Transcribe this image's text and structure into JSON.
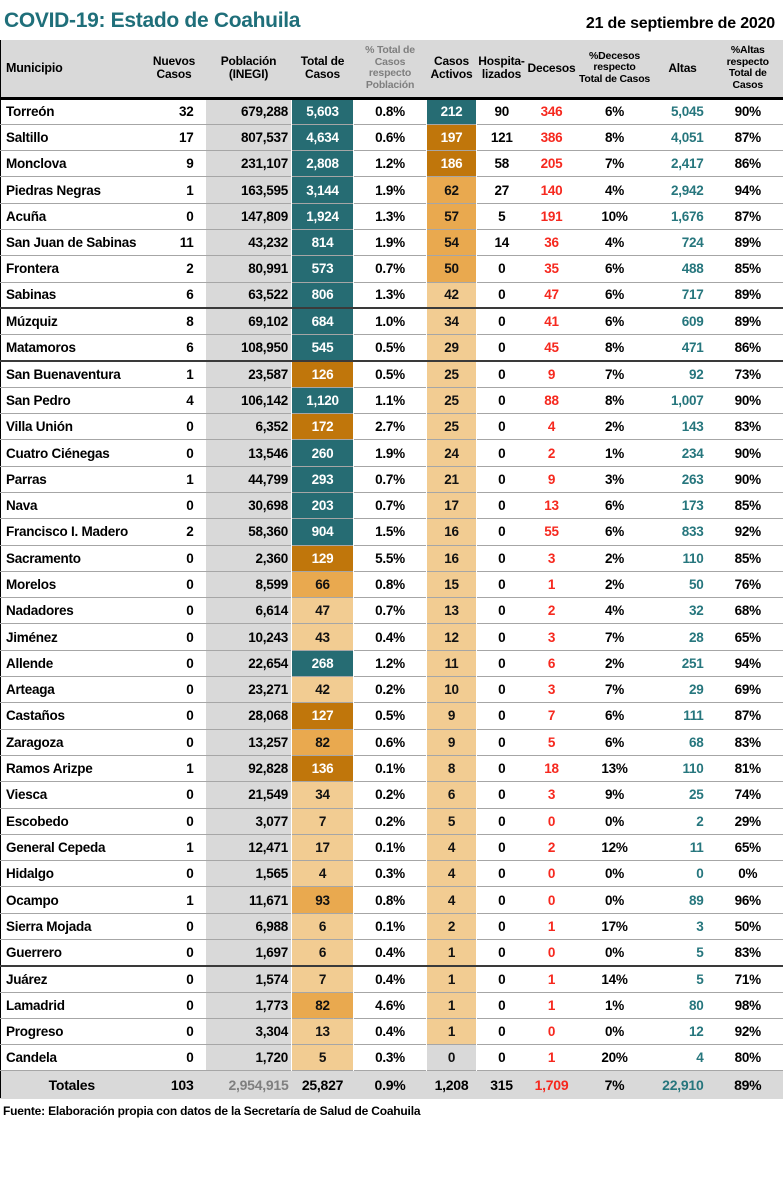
{
  "header": {
    "title": "COVID-19: Estado de Coahuila",
    "date": "21 de septiembre de 2020"
  },
  "colors": {
    "title_teal": "#1F6F7A",
    "cell_teal_bg": "#266C73",
    "cell_dark_orange_bg": "#C0760B",
    "cell_mid_orange_bg": "#E9A94F",
    "cell_light_orange_bg": "#F2CC92",
    "band_gray_bg": "#D9D9D9",
    "deaths_red_text": "#F6281E",
    "altas_teal_text": "#26767D",
    "muted_gray_text": "#7F7F7F"
  },
  "table": {
    "columns": [
      {
        "key": "municipio",
        "label": "Municipio"
      },
      {
        "key": "nuevos",
        "label": "Nuevos\nCasos"
      },
      {
        "key": "poblacion",
        "label": "Población\n(INEGI)"
      },
      {
        "key": "total",
        "label": "Total de\nCasos"
      },
      {
        "key": "pct_pob",
        "label": "% Total de Casos\nrespecto\nPoblación"
      },
      {
        "key": "activos",
        "label": "Casos\nActivos"
      },
      {
        "key": "hosp",
        "label": "Hospita-\nlizados"
      },
      {
        "key": "decesos",
        "label": "Decesos"
      },
      {
        "key": "pct_dec",
        "label": "%Decesos\nrespecto\nTotal de Casos"
      },
      {
        "key": "altas",
        "label": "Altas"
      },
      {
        "key": "pct_altas",
        "label": "%Altas\nrespecto\nTotal de Casos"
      }
    ],
    "rows": [
      {
        "municipio": "Torreón",
        "nuevos": "32",
        "poblacion": "679,288",
        "total": "5,603",
        "total_tone": "teal",
        "pct_pob": "0.8%",
        "activos": "212",
        "activos_tone": "teal",
        "hosp": "90",
        "decesos": "346",
        "pct_dec": "6%",
        "altas": "5,045",
        "pct_altas": "90%"
      },
      {
        "municipio": "Saltillo",
        "nuevos": "17",
        "poblacion": "807,537",
        "total": "4,634",
        "total_tone": "teal",
        "pct_pob": "0.6%",
        "activos": "197",
        "activos_tone": "dark",
        "hosp": "121",
        "decesos": "386",
        "pct_dec": "8%",
        "altas": "4,051",
        "pct_altas": "87%"
      },
      {
        "municipio": "Monclova",
        "nuevos": "9",
        "poblacion": "231,107",
        "total": "2,808",
        "total_tone": "teal",
        "pct_pob": "1.2%",
        "activos": "186",
        "activos_tone": "dark",
        "hosp": "58",
        "decesos": "205",
        "pct_dec": "7%",
        "altas": "2,417",
        "pct_altas": "86%"
      },
      {
        "municipio": "Piedras Negras",
        "nuevos": "1",
        "poblacion": "163,595",
        "total": "3,144",
        "total_tone": "teal",
        "pct_pob": "1.9%",
        "activos": "62",
        "activos_tone": "mid",
        "hosp": "27",
        "decesos": "140",
        "pct_dec": "4%",
        "altas": "2,942",
        "pct_altas": "94%"
      },
      {
        "municipio": "Acuña",
        "nuevos": "0",
        "poblacion": "147,809",
        "total": "1,924",
        "total_tone": "teal",
        "pct_pob": "1.3%",
        "activos": "57",
        "activos_tone": "mid",
        "hosp": "5",
        "decesos": "191",
        "pct_dec": "10%",
        "altas": "1,676",
        "pct_altas": "87%"
      },
      {
        "municipio": "San Juan de Sabinas",
        "nuevos": "11",
        "poblacion": "43,232",
        "total": "814",
        "total_tone": "teal",
        "pct_pob": "1.9%",
        "activos": "54",
        "activos_tone": "mid",
        "hosp": "14",
        "decesos": "36",
        "pct_dec": "4%",
        "altas": "724",
        "pct_altas": "89%"
      },
      {
        "municipio": "Frontera",
        "nuevos": "2",
        "poblacion": "80,991",
        "total": "573",
        "total_tone": "teal",
        "pct_pob": "0.7%",
        "activos": "50",
        "activos_tone": "mid",
        "hosp": "0",
        "decesos": "35",
        "pct_dec": "6%",
        "altas": "488",
        "pct_altas": "85%"
      },
      {
        "municipio": "Sabinas",
        "nuevos": "6",
        "poblacion": "63,522",
        "total": "806",
        "total_tone": "teal",
        "pct_pob": "1.3%",
        "activos": "42",
        "activos_tone": "light",
        "hosp": "0",
        "decesos": "47",
        "pct_dec": "6%",
        "altas": "717",
        "pct_altas": "89%",
        "group_end": true
      },
      {
        "municipio": "Múzquiz",
        "nuevos": "8",
        "poblacion": "69,102",
        "total": "684",
        "total_tone": "teal",
        "pct_pob": "1.0%",
        "activos": "34",
        "activos_tone": "light",
        "hosp": "0",
        "decesos": "41",
        "pct_dec": "6%",
        "altas": "609",
        "pct_altas": "89%"
      },
      {
        "municipio": "Matamoros",
        "nuevos": "6",
        "poblacion": "108,950",
        "total": "545",
        "total_tone": "teal",
        "pct_pob": "0.5%",
        "activos": "29",
        "activos_tone": "light",
        "hosp": "0",
        "decesos": "45",
        "pct_dec": "8%",
        "altas": "471",
        "pct_altas": "86%",
        "group_end": true
      },
      {
        "municipio": "San Buenaventura",
        "nuevos": "1",
        "poblacion": "23,587",
        "total": "126",
        "total_tone": "dark",
        "pct_pob": "0.5%",
        "activos": "25",
        "activos_tone": "light",
        "hosp": "0",
        "decesos": "9",
        "pct_dec": "7%",
        "altas": "92",
        "pct_altas": "73%"
      },
      {
        "municipio": "San Pedro",
        "nuevos": "4",
        "poblacion": "106,142",
        "total": "1,120",
        "total_tone": "teal",
        "pct_pob": "1.1%",
        "activos": "25",
        "activos_tone": "light",
        "hosp": "0",
        "decesos": "88",
        "pct_dec": "8%",
        "altas": "1,007",
        "pct_altas": "90%"
      },
      {
        "municipio": "Villa Unión",
        "nuevos": "0",
        "poblacion": "6,352",
        "total": "172",
        "total_tone": "dark",
        "pct_pob": "2.7%",
        "activos": "25",
        "activos_tone": "light",
        "hosp": "0",
        "decesos": "4",
        "pct_dec": "2%",
        "altas": "143",
        "pct_altas": "83%"
      },
      {
        "municipio": "Cuatro Ciénegas",
        "nuevos": "0",
        "poblacion": "13,546",
        "total": "260",
        "total_tone": "teal",
        "pct_pob": "1.9%",
        "activos": "24",
        "activos_tone": "light",
        "hosp": "0",
        "decesos": "2",
        "pct_dec": "1%",
        "altas": "234",
        "pct_altas": "90%"
      },
      {
        "municipio": "Parras",
        "nuevos": "1",
        "poblacion": "44,799",
        "total": "293",
        "total_tone": "teal",
        "pct_pob": "0.7%",
        "activos": "21",
        "activos_tone": "light",
        "hosp": "0",
        "decesos": "9",
        "pct_dec": "3%",
        "altas": "263",
        "pct_altas": "90%"
      },
      {
        "municipio": "Nava",
        "nuevos": "0",
        "poblacion": "30,698",
        "total": "203",
        "total_tone": "teal",
        "pct_pob": "0.7%",
        "activos": "17",
        "activos_tone": "light",
        "hosp": "0",
        "decesos": "13",
        "pct_dec": "6%",
        "altas": "173",
        "pct_altas": "85%"
      },
      {
        "municipio": "Francisco I. Madero",
        "nuevos": "2",
        "poblacion": "58,360",
        "total": "904",
        "total_tone": "teal",
        "pct_pob": "1.5%",
        "activos": "16",
        "activos_tone": "light",
        "hosp": "0",
        "decesos": "55",
        "pct_dec": "6%",
        "altas": "833",
        "pct_altas": "92%"
      },
      {
        "municipio": "Sacramento",
        "nuevos": "0",
        "poblacion": "2,360",
        "total": "129",
        "total_tone": "dark",
        "pct_pob": "5.5%",
        "activos": "16",
        "activos_tone": "light",
        "hosp": "0",
        "decesos": "3",
        "pct_dec": "2%",
        "altas": "110",
        "pct_altas": "85%"
      },
      {
        "municipio": "Morelos",
        "nuevos": "0",
        "poblacion": "8,599",
        "total": "66",
        "total_tone": "mid",
        "pct_pob": "0.8%",
        "activos": "15",
        "activos_tone": "light",
        "hosp": "0",
        "decesos": "1",
        "pct_dec": "2%",
        "altas": "50",
        "pct_altas": "76%"
      },
      {
        "municipio": "Nadadores",
        "nuevos": "0",
        "poblacion": "6,614",
        "total": "47",
        "total_tone": "light",
        "pct_pob": "0.7%",
        "activos": "13",
        "activos_tone": "light",
        "hosp": "0",
        "decesos": "2",
        "pct_dec": "4%",
        "altas": "32",
        "pct_altas": "68%"
      },
      {
        "municipio": "Jiménez",
        "nuevos": "0",
        "poblacion": "10,243",
        "total": "43",
        "total_tone": "light",
        "pct_pob": "0.4%",
        "activos": "12",
        "activos_tone": "light",
        "hosp": "0",
        "decesos": "3",
        "pct_dec": "7%",
        "altas": "28",
        "pct_altas": "65%"
      },
      {
        "municipio": "Allende",
        "nuevos": "0",
        "poblacion": "22,654",
        "total": "268",
        "total_tone": "teal",
        "pct_pob": "1.2%",
        "activos": "11",
        "activos_tone": "light",
        "hosp": "0",
        "decesos": "6",
        "pct_dec": "2%",
        "altas": "251",
        "pct_altas": "94%"
      },
      {
        "municipio": "Arteaga",
        "nuevos": "0",
        "poblacion": "23,271",
        "total": "42",
        "total_tone": "light",
        "pct_pob": "0.2%",
        "activos": "10",
        "activos_tone": "light",
        "hosp": "0",
        "decesos": "3",
        "pct_dec": "7%",
        "altas": "29",
        "pct_altas": "69%"
      },
      {
        "municipio": "Castaños",
        "nuevos": "0",
        "poblacion": "28,068",
        "total": "127",
        "total_tone": "dark",
        "pct_pob": "0.5%",
        "activos": "9",
        "activos_tone": "light",
        "hosp": "0",
        "decesos": "7",
        "pct_dec": "6%",
        "altas": "111",
        "pct_altas": "87%"
      },
      {
        "municipio": "Zaragoza",
        "nuevos": "0",
        "poblacion": "13,257",
        "total": "82",
        "total_tone": "mid",
        "pct_pob": "0.6%",
        "activos": "9",
        "activos_tone": "light",
        "hosp": "0",
        "decesos": "5",
        "pct_dec": "6%",
        "altas": "68",
        "pct_altas": "83%"
      },
      {
        "municipio": "Ramos Arizpe",
        "nuevos": "1",
        "poblacion": "92,828",
        "total": "136",
        "total_tone": "dark",
        "pct_pob": "0.1%",
        "activos": "8",
        "activos_tone": "light",
        "hosp": "0",
        "decesos": "18",
        "pct_dec": "13%",
        "altas": "110",
        "pct_altas": "81%"
      },
      {
        "municipio": "Viesca",
        "nuevos": "0",
        "poblacion": "21,549",
        "total": "34",
        "total_tone": "light",
        "pct_pob": "0.2%",
        "activos": "6",
        "activos_tone": "light",
        "hosp": "0",
        "decesos": "3",
        "pct_dec": "9%",
        "altas": "25",
        "pct_altas": "74%"
      },
      {
        "municipio": "Escobedo",
        "nuevos": "0",
        "poblacion": "3,077",
        "total": "7",
        "total_tone": "light",
        "pct_pob": "0.2%",
        "activos": "5",
        "activos_tone": "light",
        "hosp": "0",
        "decesos": "0",
        "pct_dec": "0%",
        "altas": "2",
        "pct_altas": "29%"
      },
      {
        "municipio": "General Cepeda",
        "nuevos": "1",
        "poblacion": "12,471",
        "total": "17",
        "total_tone": "light",
        "pct_pob": "0.1%",
        "activos": "4",
        "activos_tone": "light",
        "hosp": "0",
        "decesos": "2",
        "pct_dec": "12%",
        "altas": "11",
        "pct_altas": "65%"
      },
      {
        "municipio": "Hidalgo",
        "nuevos": "0",
        "poblacion": "1,565",
        "total": "4",
        "total_tone": "light",
        "pct_pob": "0.3%",
        "activos": "4",
        "activos_tone": "light",
        "hosp": "0",
        "decesos": "0",
        "pct_dec": "0%",
        "altas": "0",
        "pct_altas": "0%"
      },
      {
        "municipio": "Ocampo",
        "nuevos": "1",
        "poblacion": "11,671",
        "total": "93",
        "total_tone": "mid",
        "pct_pob": "0.8%",
        "activos": "4",
        "activos_tone": "light",
        "hosp": "0",
        "decesos": "0",
        "pct_dec": "0%",
        "altas": "89",
        "pct_altas": "96%"
      },
      {
        "municipio": "Sierra Mojada",
        "nuevos": "0",
        "poblacion": "6,988",
        "total": "6",
        "total_tone": "light",
        "pct_pob": "0.1%",
        "activos": "2",
        "activos_tone": "light",
        "hosp": "0",
        "decesos": "1",
        "pct_dec": "17%",
        "altas": "3",
        "pct_altas": "50%"
      },
      {
        "municipio": "Guerrero",
        "nuevos": "0",
        "poblacion": "1,697",
        "total": "6",
        "total_tone": "light",
        "pct_pob": "0.4%",
        "activos": "1",
        "activos_tone": "light",
        "hosp": "0",
        "decesos": "0",
        "pct_dec": "0%",
        "altas": "5",
        "pct_altas": "83%",
        "group_end": true
      },
      {
        "municipio": "Juárez",
        "nuevos": "0",
        "poblacion": "1,574",
        "total": "7",
        "total_tone": "light",
        "pct_pob": "0.4%",
        "activos": "1",
        "activos_tone": "light",
        "hosp": "0",
        "decesos": "1",
        "pct_dec": "14%",
        "altas": "5",
        "pct_altas": "71%"
      },
      {
        "municipio": "Lamadrid",
        "nuevos": "0",
        "poblacion": "1,773",
        "total": "82",
        "total_tone": "mid",
        "pct_pob": "4.6%",
        "activos": "1",
        "activos_tone": "light",
        "hosp": "0",
        "decesos": "1",
        "pct_dec": "1%",
        "altas": "80",
        "pct_altas": "98%"
      },
      {
        "municipio": "Progreso",
        "nuevos": "0",
        "poblacion": "3,304",
        "total": "13",
        "total_tone": "light",
        "pct_pob": "0.4%",
        "activos": "1",
        "activos_tone": "light",
        "hosp": "0",
        "decesos": "0",
        "pct_dec": "0%",
        "altas": "12",
        "pct_altas": "92%"
      },
      {
        "municipio": "Candela",
        "nuevos": "0",
        "poblacion": "1,720",
        "total": "5",
        "total_tone": "light",
        "pct_pob": "0.3%",
        "activos": "0",
        "activos_tone": "gray",
        "hosp": "0",
        "decesos": "1",
        "pct_dec": "20%",
        "altas": "4",
        "pct_altas": "80%"
      }
    ],
    "totals": {
      "municipio": "Totales",
      "nuevos": "103",
      "poblacion": "2,954,915",
      "total": "25,827",
      "pct_pob": "0.9%",
      "activos": "1,208",
      "hosp": "315",
      "decesos": "1,709",
      "pct_dec": "7%",
      "altas": "22,910",
      "pct_altas": "89%"
    }
  },
  "footer": {
    "source": "Fuente: Elaboración propia con datos de la Secretaría de Salud de Coahuila"
  }
}
